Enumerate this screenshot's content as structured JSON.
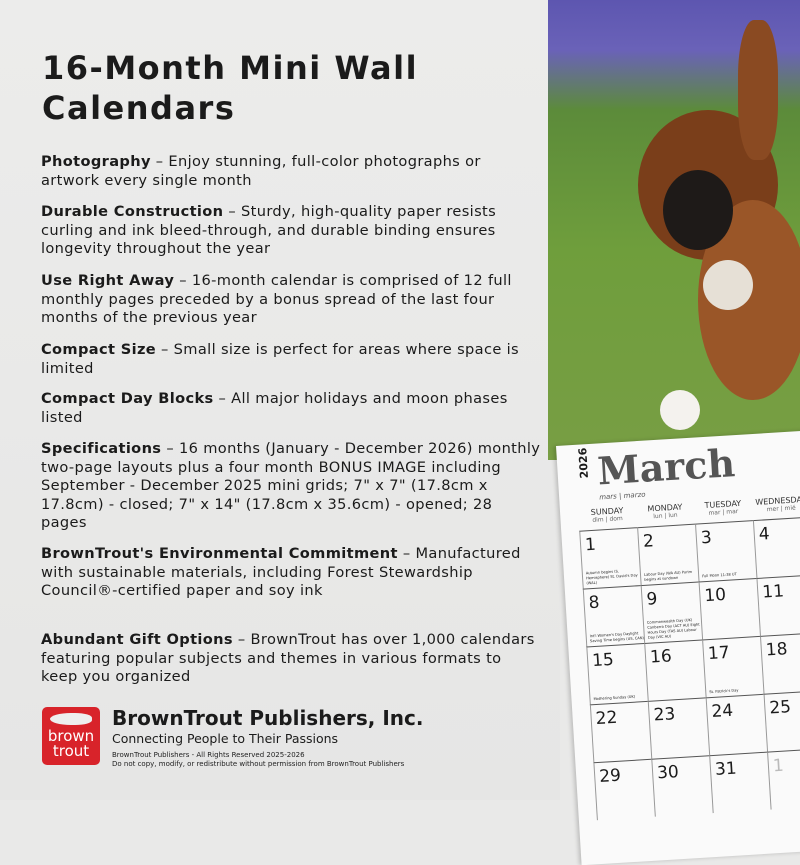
{
  "title": "16-Month Mini Wall Calendars",
  "features": [
    {
      "label": "Photography",
      "text": " – Enjoy stunning, full-color photographs or artwork every single month"
    },
    {
      "label": "Durable Construction",
      "text": " – Sturdy, high-quality paper resists curling and ink bleed-through, and durable binding ensures longevity throughout the year"
    },
    {
      "label": "Use Right Away",
      "text": " – 16-month calendar is comprised of 12 full monthly pages preceded by a bonus spread of the last four months of the previous year"
    },
    {
      "label": "Compact Size",
      "text": " – Small size is perfect for areas where space is limited"
    },
    {
      "label": "Compact Day Blocks",
      "text": " – All major holidays and moon phases listed"
    },
    {
      "label": "Specifications",
      "text": " – 16 months (January - December 2026) monthly two-page layouts plus a four month BONUS IMAGE including September - December 2025 mini grids; 7\" x 7\" (17.8cm x 17.8cm) - closed; 7\" x 14\" (17.8cm x 35.6cm) - opened; 28 pages"
    },
    {
      "label": "BrownTrout's Environmental Commitment",
      "text": " – Manufactured with sustainable materials, including Forest Stewardship Council®-certified paper and soy ink"
    },
    {
      "label": "Abundant Gift Options",
      "text": " – BrownTrout has over 1,000 calendars featuring popular subjects and themes in various formats to keep you organized"
    }
  ],
  "brand": {
    "logo_text": "brown trout",
    "name": "BrownTrout Publishers, Inc.",
    "tagline": "Connecting People to Their Passions",
    "legal1": "BrownTrout Publishers - All Rights Reserved 2025-2026",
    "legal2": "Do not copy, modify, or redistribute without permission from BrownTrout Publishers",
    "color": "#d8232a"
  },
  "calendar": {
    "year": "2026",
    "month": "March",
    "month_sub": "mars | marzo",
    "days": [
      {
        "name": "SUNDAY",
        "sub": "dim | dom"
      },
      {
        "name": "MONDAY",
        "sub": "lun | lun"
      },
      {
        "name": "TUESDAY",
        "sub": "mar | mar"
      },
      {
        "name": "WEDNESDAY",
        "sub": "mer | mié"
      }
    ],
    "weeks": [
      [
        {
          "n": "1",
          "h": "Autumn begins (S. Hemisphere) St. David's Day (WAL)"
        },
        {
          "n": "2",
          "h": "Labour Day (WA AU) Purim begins at sundown"
        },
        {
          "n": "3",
          "h": "Full Moon 11:38 UT"
        },
        {
          "n": "4",
          "h": ""
        }
      ],
      [
        {
          "n": "8",
          "h": "Int'l Women's Day Daylight Saving Time begins (US, CAN)"
        },
        {
          "n": "9",
          "h": "Commonwealth Day (UK) Canberra Day (ACT AU) Eight Hours Day (TAS AU) Labour Day (VIC AU)"
        },
        {
          "n": "10",
          "h": ""
        },
        {
          "n": "11",
          "h": ""
        }
      ],
      [
        {
          "n": "15",
          "h": "Mothering Sunday (UK)"
        },
        {
          "n": "16",
          "h": ""
        },
        {
          "n": "17",
          "h": "St. Patrick's Day"
        },
        {
          "n": "18",
          "h": ""
        }
      ],
      [
        {
          "n": "22",
          "h": ""
        },
        {
          "n": "23",
          "h": ""
        },
        {
          "n": "24",
          "h": ""
        },
        {
          "n": "25",
          "h": ""
        }
      ],
      [
        {
          "n": "29",
          "h": ""
        },
        {
          "n": "30",
          "h": ""
        },
        {
          "n": "31",
          "h": ""
        },
        {
          "n": "1",
          "h": ""
        }
      ]
    ]
  }
}
